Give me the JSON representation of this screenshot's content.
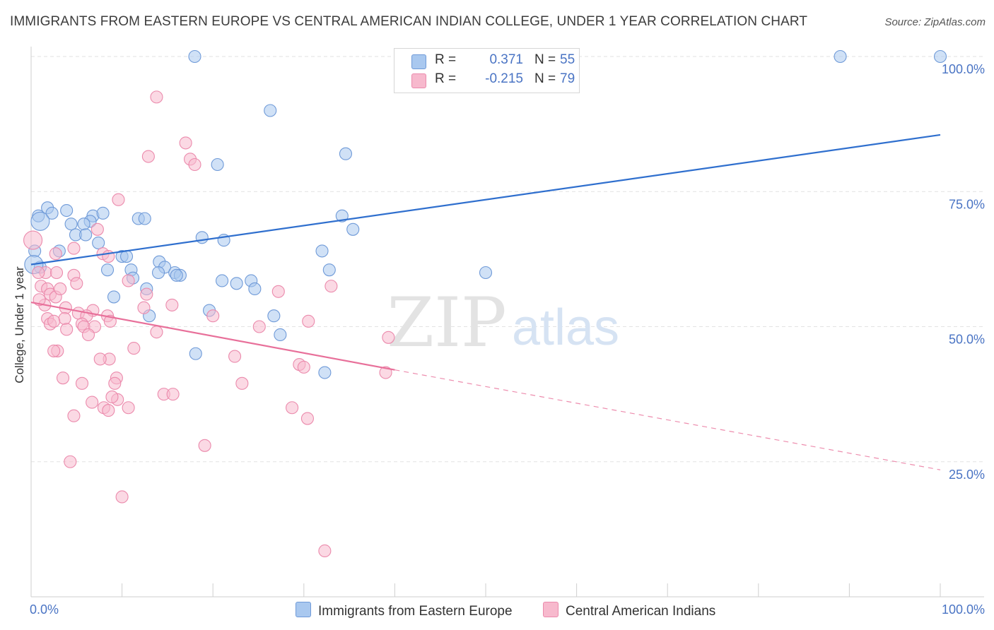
{
  "title": "IMMIGRANTS FROM EASTERN EUROPE VS CENTRAL AMERICAN INDIAN COLLEGE, UNDER 1 YEAR CORRELATION CHART",
  "source": "Source: ZipAtlas.com",
  "watermark": {
    "zip": "ZIP",
    "atlas": "atlas"
  },
  "legend": {
    "r_label": "R =",
    "n_label": "N =",
    "series": [
      {
        "name": "Immigrants from Eastern Europe",
        "r": "0.371",
        "n": "55",
        "color": "#a9c8ef",
        "line": "#2f6fce"
      },
      {
        "name": "Central American Indians",
        "r": "-0.215",
        "n": "79",
        "color": "#f7b9cd",
        "line": "#e8709a"
      }
    ]
  },
  "chart_data": {
    "type": "scatter",
    "xlabel": "",
    "ylabel": "College, Under 1 year",
    "xlim": [
      0,
      100
    ],
    "ylim": [
      0,
      100
    ],
    "x_tick_labels": [
      "0.0%",
      "100.0%"
    ],
    "y_tick_labels": [
      "100.0%",
      "75.0%",
      "50.0%",
      "25.0%"
    ],
    "y_ticks": [
      100,
      75,
      50,
      25
    ],
    "series": [
      {
        "name": "Immigrants from Eastern Europe",
        "color": "#a9c8ef",
        "stroke": "#6f9ad8",
        "trend": {
          "x0": 0,
          "y0": 61.5,
          "x1": 100,
          "y1": 85.5,
          "dashed_after": null
        },
        "points": [
          [
            18.0,
            100
          ],
          [
            89,
            100
          ],
          [
            100,
            100
          ],
          [
            26.3,
            90
          ],
          [
            34.6,
            82
          ],
          [
            20.5,
            80
          ],
          [
            1.8,
            72
          ],
          [
            2.3,
            71
          ],
          [
            3.9,
            71.5
          ],
          [
            0.8,
            70.5
          ],
          [
            6.8,
            70.5
          ],
          [
            7.9,
            71
          ],
          [
            11.8,
            70
          ],
          [
            12.5,
            70
          ],
          [
            34.2,
            70.5
          ],
          [
            6.5,
            69.5
          ],
          [
            4.4,
            69
          ],
          [
            5.8,
            69
          ],
          [
            35.4,
            68
          ],
          [
            4.9,
            67
          ],
          [
            6.0,
            67
          ],
          [
            18.8,
            66.5
          ],
          [
            21.2,
            66
          ],
          [
            7.4,
            65.5
          ],
          [
            0.4,
            64
          ],
          [
            3.1,
            64
          ],
          [
            32.0,
            64
          ],
          [
            10.0,
            63
          ],
          [
            10.5,
            63
          ],
          [
            14.1,
            62
          ],
          [
            1.0,
            61
          ],
          [
            14.7,
            61
          ],
          [
            8.4,
            60.5
          ],
          [
            32.8,
            60.5
          ],
          [
            11.0,
            60.5
          ],
          [
            50.0,
            60
          ],
          [
            14.0,
            60
          ],
          [
            15.8,
            60
          ],
          [
            16.4,
            59.5
          ],
          [
            16.0,
            59.5
          ],
          [
            11.2,
            59
          ],
          [
            21.0,
            58.5
          ],
          [
            22.6,
            58
          ],
          [
            24.2,
            58.5
          ],
          [
            24.6,
            57
          ],
          [
            12.7,
            57
          ],
          [
            9.1,
            55.5
          ],
          [
            13.0,
            52
          ],
          [
            19.6,
            53
          ],
          [
            26.7,
            52
          ],
          [
            27.4,
            48.5
          ],
          [
            18.1,
            45
          ],
          [
            32.3,
            41.5
          ],
          [
            1.0,
            69.5
          ],
          [
            0.3,
            61.5
          ]
        ]
      },
      {
        "name": "Central American Indians",
        "color": "#f7b9cd",
        "stroke": "#eb8aac",
        "trend": {
          "x0": 0,
          "y0": 54.5,
          "x1": 40,
          "y1": 42,
          "dashed_to": {
            "x": 100,
            "y": 23.5
          }
        },
        "points": [
          [
            13.8,
            92.5
          ],
          [
            17.0,
            84
          ],
          [
            12.9,
            81.5
          ],
          [
            17.5,
            81
          ],
          [
            18.0,
            80
          ],
          [
            9.6,
            73.5
          ],
          [
            0.2,
            66
          ],
          [
            7.3,
            68
          ],
          [
            4.7,
            64.5
          ],
          [
            2.7,
            63.5
          ],
          [
            7.9,
            63.5
          ],
          [
            8.5,
            63
          ],
          [
            1.6,
            60
          ],
          [
            2.8,
            60
          ],
          [
            4.7,
            59.5
          ],
          [
            0.8,
            60
          ],
          [
            5.0,
            58
          ],
          [
            10.7,
            58.5
          ],
          [
            1.1,
            57.5
          ],
          [
            1.8,
            57
          ],
          [
            2.1,
            56
          ],
          [
            12.7,
            56
          ],
          [
            27.2,
            56.5
          ],
          [
            33.0,
            57.5
          ],
          [
            2.7,
            55.5
          ],
          [
            1.5,
            54
          ],
          [
            3.8,
            53.5
          ],
          [
            12.4,
            53.5
          ],
          [
            15.5,
            54
          ],
          [
            6.8,
            53
          ],
          [
            5.2,
            52.5
          ],
          [
            6.1,
            52
          ],
          [
            8.4,
            52
          ],
          [
            1.8,
            51.5
          ],
          [
            3.7,
            51.5
          ],
          [
            8.7,
            51
          ],
          [
            2.1,
            50.5
          ],
          [
            5.6,
            50.5
          ],
          [
            2.5,
            51
          ],
          [
            5.8,
            50
          ],
          [
            7.0,
            50
          ],
          [
            3.9,
            49.5
          ],
          [
            13.8,
            49
          ],
          [
            6.3,
            48.5
          ],
          [
            39.3,
            48
          ],
          [
            11.3,
            46
          ],
          [
            2.9,
            45.5
          ],
          [
            2.5,
            45.5
          ],
          [
            22.4,
            44.5
          ],
          [
            8.6,
            44
          ],
          [
            29.5,
            43
          ],
          [
            30.0,
            42.5
          ],
          [
            39.0,
            41.5
          ],
          [
            3.5,
            40.5
          ],
          [
            9.4,
            40.5
          ],
          [
            5.6,
            39.5
          ],
          [
            9.2,
            39.5
          ],
          [
            23.2,
            39.5
          ],
          [
            14.6,
            37.5
          ],
          [
            15.6,
            37.5
          ],
          [
            9.5,
            36.5
          ],
          [
            6.7,
            36
          ],
          [
            8.0,
            35
          ],
          [
            10.7,
            35
          ],
          [
            8.5,
            34.5
          ],
          [
            28.7,
            35
          ],
          [
            4.7,
            33.5
          ],
          [
            30.4,
            33
          ],
          [
            19.1,
            28
          ],
          [
            4.3,
            25
          ],
          [
            10.0,
            18.5
          ],
          [
            32.3,
            8.5
          ],
          [
            30.5,
            51
          ],
          [
            25.1,
            50
          ],
          [
            20.0,
            52
          ],
          [
            8.9,
            37
          ],
          [
            3.2,
            57
          ],
          [
            0.9,
            55
          ],
          [
            7.6,
            44
          ]
        ]
      }
    ]
  }
}
